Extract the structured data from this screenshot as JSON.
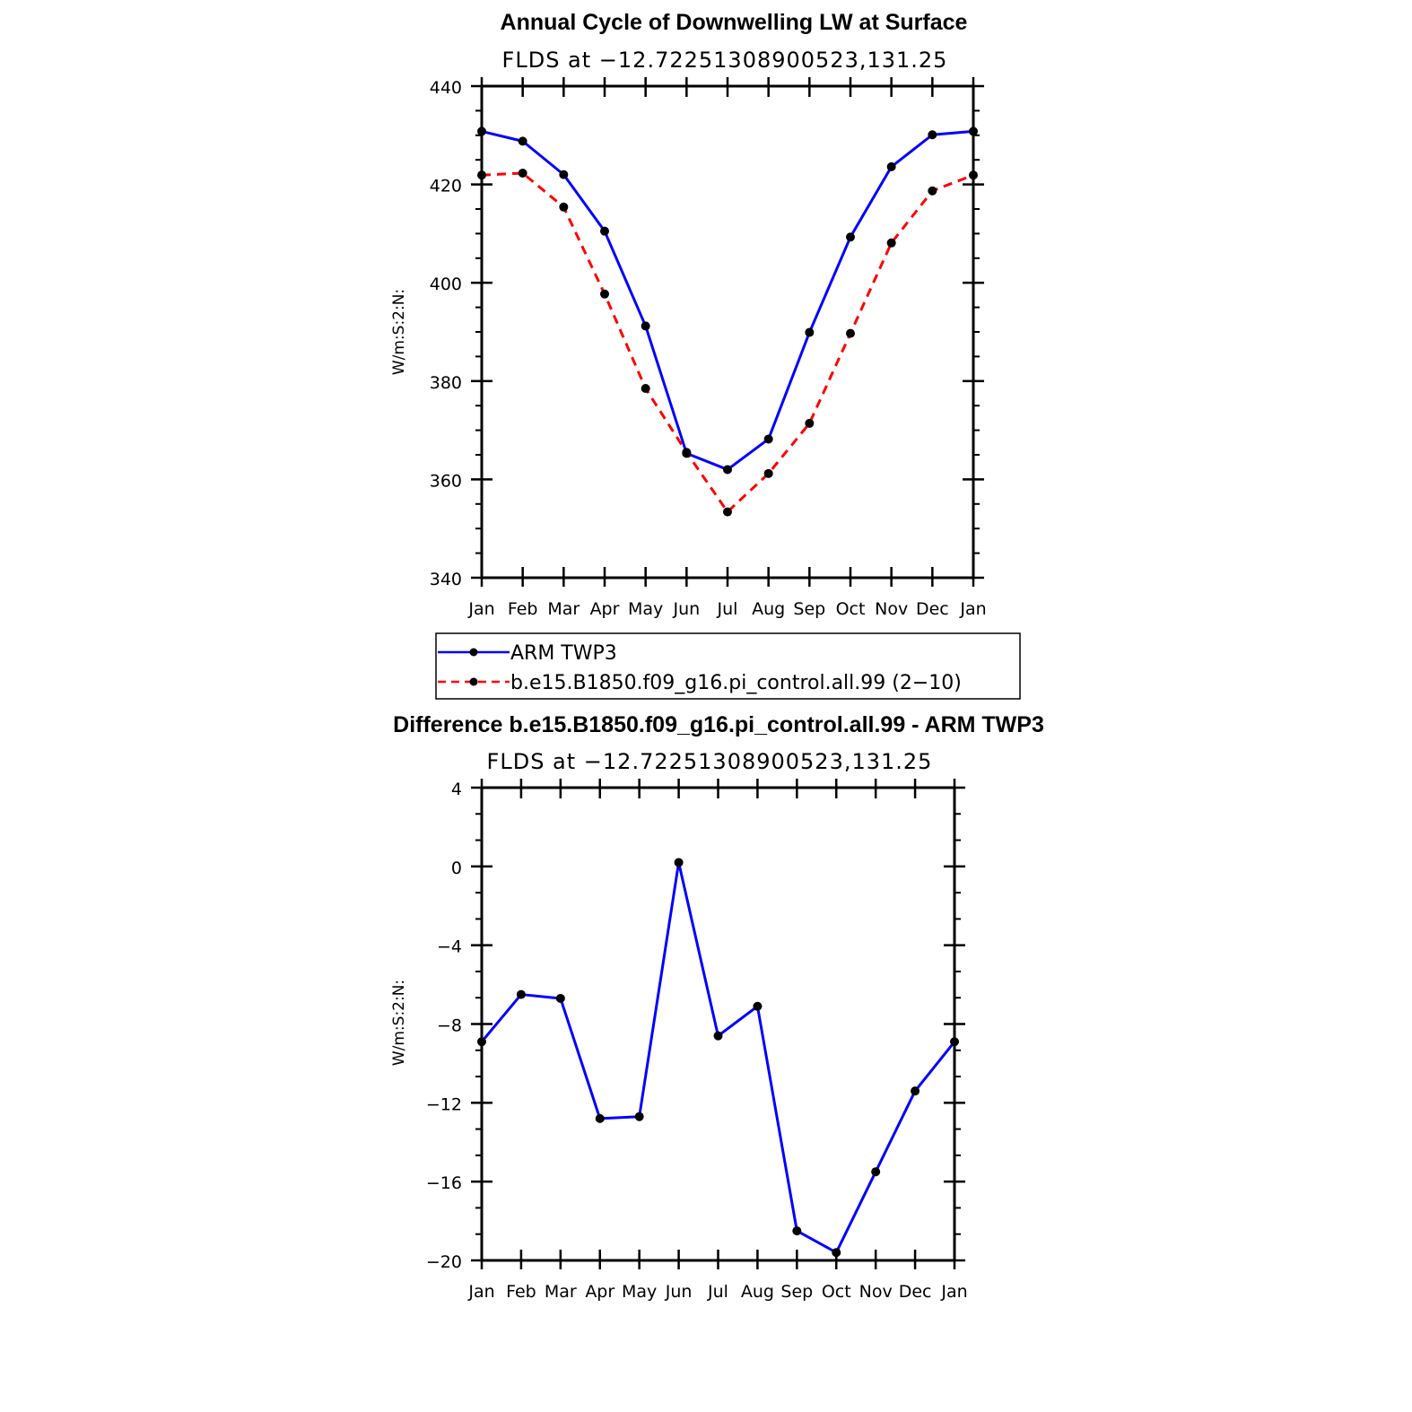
{
  "chart_data": [
    {
      "type": "line",
      "title": "Annual Cycle of Downwelling LW at Surface",
      "subtitle": "FLDS at −12.72251308900523,131.25",
      "ylabel": "W/m:S:2:N:",
      "xlabel": "",
      "categories": [
        "Jan",
        "Feb",
        "Mar",
        "Apr",
        "May",
        "Jun",
        "Jul",
        "Aug",
        "Sep",
        "Oct",
        "Nov",
        "Dec",
        "Jan"
      ],
      "ylim": [
        340,
        440
      ],
      "yticks": [
        "340",
        "360",
        "380",
        "400",
        "420",
        "440"
      ],
      "series": [
        {
          "name": "ARM TWP3",
          "color": "#0000ff",
          "dash": "solid",
          "values": [
            430.8,
            428.8,
            422.0,
            410.5,
            391.2,
            365.3,
            362.0,
            368.2,
            389.9,
            409.3,
            423.6,
            430.1,
            430.8
          ]
        },
        {
          "name": "b.e15.B1850.f09_g16.pi_control.all.99 (2−10)",
          "color": "#ff0000",
          "dash": "dashed",
          "values": [
            421.9,
            422.3,
            415.4,
            397.7,
            378.5,
            365.5,
            353.4,
            361.2,
            371.4,
            389.7,
            408.1,
            418.7,
            421.9
          ]
        }
      ],
      "legend": "bottom"
    },
    {
      "type": "line",
      "title": "Difference b.e15.B1850.f09_g16.pi_control.all.99 - ARM TWP3",
      "subtitle": "FLDS at −12.72251308900523,131.25",
      "ylabel": "W/m:S:2:N:",
      "xlabel": "",
      "categories": [
        "Jan",
        "Feb",
        "Mar",
        "Apr",
        "May",
        "Jun",
        "Jul",
        "Aug",
        "Sep",
        "Oct",
        "Nov",
        "Dec",
        "Jan"
      ],
      "ylim": [
        -20,
        4
      ],
      "yticks": [
        "4",
        "0",
        "−4",
        "−8",
        "−12",
        "−16",
        "−20"
      ],
      "yticks_values": [
        4,
        0,
        -4,
        -8,
        -12,
        -16,
        -20
      ],
      "series": [
        {
          "name": "Difference",
          "color": "#0000ff",
          "dash": "solid",
          "values": [
            -8.9,
            -6.5,
            -6.7,
            -12.8,
            -12.7,
            0.2,
            -8.6,
            -7.1,
            -18.5,
            -19.6,
            -15.5,
            -11.4,
            -8.9
          ]
        }
      ]
    }
  ]
}
